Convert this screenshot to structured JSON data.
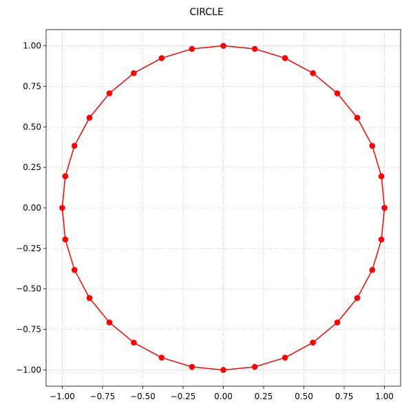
{
  "chart_data": {
    "type": "line",
    "title": "CIRCLE",
    "xlabel": "",
    "ylabel": "",
    "xlim": [
      -1.1,
      1.1
    ],
    "ylim": [
      -1.1,
      1.1
    ],
    "xticks": [
      -1.0,
      -0.75,
      -0.5,
      -0.25,
      0.0,
      0.25,
      0.5,
      0.75,
      1.0
    ],
    "yticks": [
      -1.0,
      -0.75,
      -0.5,
      -0.25,
      0.0,
      0.25,
      0.5,
      0.75,
      1.0
    ],
    "xtick_labels": [
      "−1.00",
      "−0.75",
      "−0.50",
      "−0.25",
      "0.00",
      "0.25",
      "0.50",
      "0.75",
      "1.00"
    ],
    "ytick_labels": [
      "−1.00",
      "−0.75",
      "−0.50",
      "−0.25",
      "0.00",
      "0.25",
      "0.50",
      "0.75",
      "1.00"
    ],
    "grid": true,
    "legend": false,
    "series": [
      {
        "color": "#ff0000",
        "marker": "circle",
        "points": [
          [
            1.0,
            0.0
          ],
          [
            0.981,
            0.195
          ],
          [
            0.924,
            0.383
          ],
          [
            0.831,
            0.556
          ],
          [
            0.707,
            0.707
          ],
          [
            0.556,
            0.831
          ],
          [
            0.383,
            0.924
          ],
          [
            0.195,
            0.981
          ],
          [
            0.0,
            1.0
          ],
          [
            -0.195,
            0.981
          ],
          [
            -0.383,
            0.924
          ],
          [
            -0.556,
            0.831
          ],
          [
            -0.707,
            0.707
          ],
          [
            -0.831,
            0.556
          ],
          [
            -0.924,
            0.383
          ],
          [
            -0.981,
            0.195
          ],
          [
            -1.0,
            0.0
          ],
          [
            -0.981,
            -0.195
          ],
          [
            -0.924,
            -0.383
          ],
          [
            -0.831,
            -0.556
          ],
          [
            -0.707,
            -0.707
          ],
          [
            -0.556,
            -0.831
          ],
          [
            -0.383,
            -0.924
          ],
          [
            -0.195,
            -0.981
          ],
          [
            0.0,
            -1.0
          ],
          [
            0.195,
            -0.981
          ],
          [
            0.383,
            -0.924
          ],
          [
            0.556,
            -0.831
          ],
          [
            0.707,
            -0.707
          ],
          [
            0.831,
            -0.556
          ],
          [
            0.924,
            -0.383
          ],
          [
            0.981,
            -0.195
          ],
          [
            1.0,
            0.0
          ]
        ]
      }
    ]
  }
}
